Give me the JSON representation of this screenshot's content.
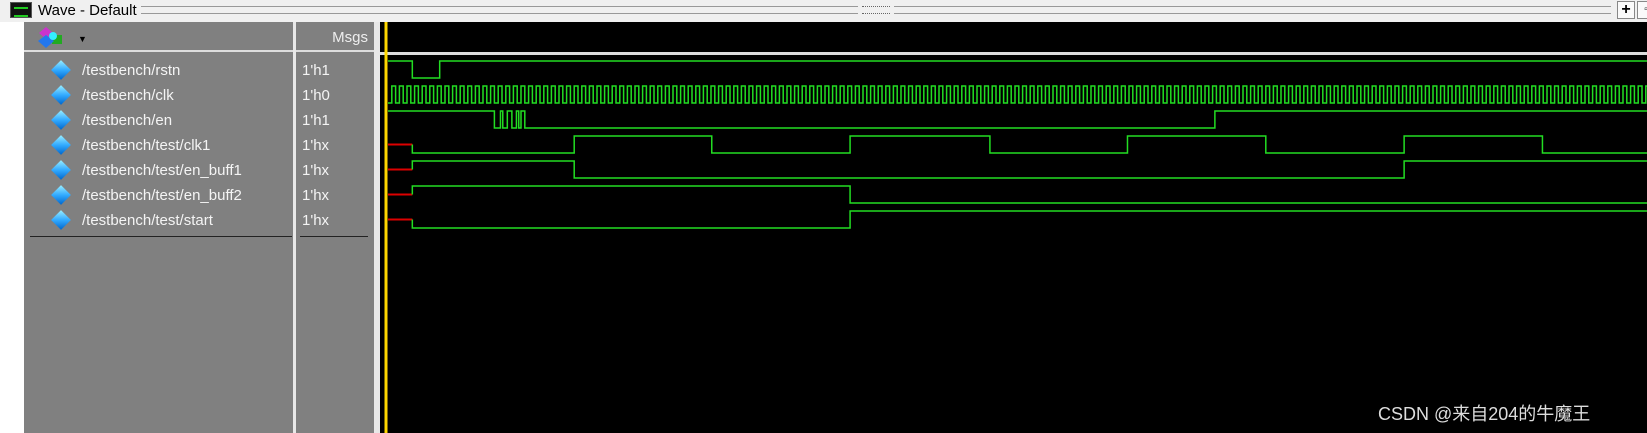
{
  "window": {
    "title": "Wave - Default",
    "buttons": [
      "+",
      "▫"
    ]
  },
  "header": {
    "msgs_label": "Msgs",
    "icon": "wave-add-icon"
  },
  "signals": [
    {
      "name": "/testbench/rstn",
      "value": "1'h1"
    },
    {
      "name": "/testbench/clk",
      "value": "1'h0"
    },
    {
      "name": "/testbench/en",
      "value": "1'h1"
    },
    {
      "name": "/testbench/test/clk1",
      "value": "1'hx"
    },
    {
      "name": "/testbench/test/en_buff1",
      "value": "1'hx"
    },
    {
      "name": "/testbench/test/en_buff2",
      "value": "1'hx"
    },
    {
      "name": "/testbench/test/start",
      "value": "1'hx"
    }
  ],
  "colors": {
    "wave": "#22dd22",
    "unknown": "#dd0000",
    "cursor": "#ffd700",
    "background": "#000000",
    "panel": "#808080"
  },
  "waveforms_in_clk_cycles": {
    "end": 168,
    "rstn": {
      "init": 1,
      "edges": [
        3.2,
        6.8
      ]
    },
    "clk": {
      "init": 0,
      "period": 1
    },
    "en": {
      "init": 1,
      "edges": [
        14,
        14.8,
        15.1,
        15.7,
        16.3,
        16.9,
        17.2,
        17.5,
        18,
        108.8
      ]
    },
    "clk1": {
      "x_until": 3.2,
      "init": 0,
      "edges": [
        24.5,
        42.6,
        60.8,
        79.2,
        97.3,
        115.5,
        133.7,
        151.9
      ]
    },
    "en_buff1": {
      "x_until": 3.2,
      "init": 1,
      "edges": [
        24.5,
        133.7
      ]
    },
    "en_buff2": {
      "x_until": 3.2,
      "init": 1,
      "edges": [
        60.8
      ]
    },
    "start": {
      "x_until": 3.2,
      "init": 0,
      "edges": [
        60.8
      ]
    }
  },
  "watermark": "CSDN @来自204的牛魔王"
}
